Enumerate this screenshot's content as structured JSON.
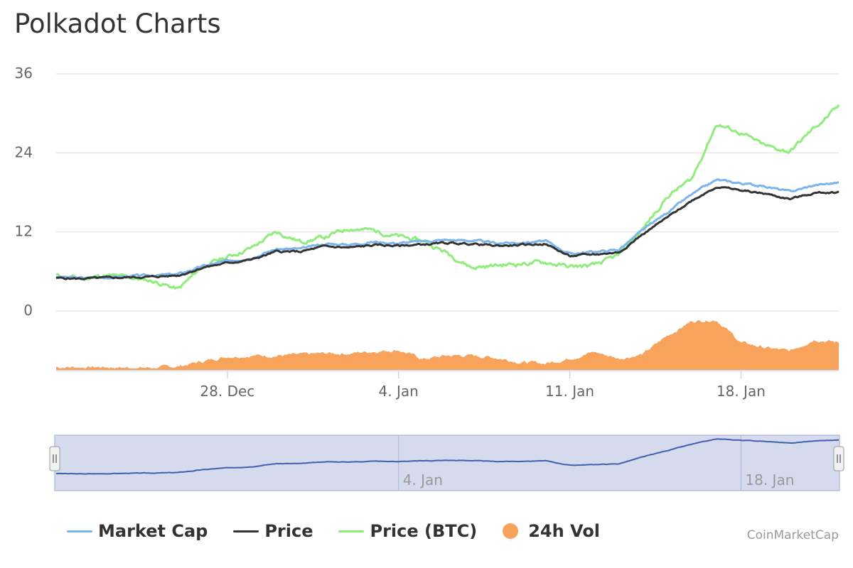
{
  "title": "Polkadot Charts",
  "credits": "CoinMarketCap",
  "colors": {
    "market_cap": "#7cb5ec",
    "price": "#333333",
    "price_btc": "#90ed7d",
    "volume": "#f7a35c",
    "navigator_line": "#3f5fb0",
    "navigator_fill": "#d5dbec"
  },
  "chart_data": {
    "type": "line",
    "title": "Polkadot Charts",
    "ylim": [
      0,
      36
    ],
    "yticks": [
      "0",
      "12",
      "24",
      "36"
    ],
    "x_range": [
      "2020-12-21",
      "2021-01-22"
    ],
    "xtick_labels": [
      "28. Dec",
      "4. Jan",
      "11. Jan",
      "18. Jan"
    ],
    "xtick_dates": [
      "2020-12-28",
      "2021-01-04",
      "2021-01-11",
      "2021-01-18"
    ],
    "grid": true,
    "legend_position": "bottom-left",
    "x": [
      "2020-12-21",
      "2020-12-22",
      "2020-12-23",
      "2020-12-24",
      "2020-12-25",
      "2020-12-26",
      "2020-12-27",
      "2020-12-28",
      "2020-12-29",
      "2020-12-30",
      "2020-12-31",
      "2021-01-01",
      "2021-01-02",
      "2021-01-03",
      "2021-01-04",
      "2021-01-05",
      "2021-01-06",
      "2021-01-07",
      "2021-01-08",
      "2021-01-09",
      "2021-01-10",
      "2021-01-11",
      "2021-01-12",
      "2021-01-13",
      "2021-01-14",
      "2021-01-15",
      "2021-01-16",
      "2021-01-17",
      "2021-01-18",
      "2021-01-19",
      "2021-01-20",
      "2021-01-21",
      "2021-01-22"
    ],
    "series": [
      {
        "name": "Market Cap",
        "key": "market_cap",
        "values": [
          5.2,
          5.0,
          5.1,
          5.3,
          5.4,
          5.6,
          6.8,
          7.6,
          8.1,
          9.4,
          9.4,
          10.2,
          10.1,
          10.5,
          10.3,
          10.6,
          10.8,
          10.7,
          10.3,
          10.4,
          10.6,
          8.7,
          9.0,
          9.3,
          12.3,
          15.0,
          17.7,
          19.9,
          19.4,
          18.9,
          18.1,
          19.1,
          19.5
        ]
      },
      {
        "name": "Price",
        "key": "price",
        "values": [
          5.0,
          4.9,
          5.0,
          5.1,
          5.2,
          5.4,
          6.6,
          7.3,
          7.8,
          9.0,
          9.0,
          9.8,
          9.6,
          10.0,
          9.9,
          10.1,
          10.3,
          10.2,
          9.9,
          10.0,
          10.2,
          8.3,
          8.6,
          8.9,
          11.7,
          14.2,
          16.8,
          18.9,
          18.3,
          17.8,
          17.0,
          17.9,
          18.1
        ]
      },
      {
        "name": "Price (BTC)",
        "key": "price_btc",
        "values": [
          5.4,
          4.9,
          5.4,
          5.1,
          4.5,
          3.3,
          6.8,
          8.2,
          9.6,
          12.0,
          10.5,
          11.2,
          12.6,
          12.2,
          11.3,
          10.6,
          8.8,
          6.6,
          6.9,
          7.2,
          7.4,
          6.7,
          6.9,
          8.4,
          12.5,
          17.4,
          20.1,
          28.4,
          27.0,
          25.0,
          24.2,
          27.8,
          31.0
        ]
      },
      {
        "name": "24h Vol",
        "key": "volume",
        "values": [
          0.4,
          0.4,
          0.4,
          0.3,
          0.3,
          0.5,
          1.2,
          1.9,
          2.0,
          2.0,
          2.1,
          2.3,
          2.3,
          2.6,
          2.8,
          1.5,
          2.0,
          2.0,
          1.7,
          1.1,
          0.9,
          1.6,
          2.5,
          1.6,
          2.2,
          4.8,
          6.8,
          7.0,
          3.8,
          3.1,
          2.6,
          4.3,
          3.8
        ]
      }
    ]
  },
  "navigator": {
    "xtick_labels": [
      "4. Jan",
      "18. Jan"
    ],
    "xtick_dates": [
      "2021-01-04",
      "2021-01-18"
    ]
  },
  "legend": [
    {
      "label": "Market Cap",
      "key": "market_cap",
      "shape": "line"
    },
    {
      "label": "Price",
      "key": "price",
      "shape": "line"
    },
    {
      "label": "Price (BTC)",
      "key": "price_btc",
      "shape": "line"
    },
    {
      "label": "24h Vol",
      "key": "volume",
      "shape": "dot"
    }
  ]
}
